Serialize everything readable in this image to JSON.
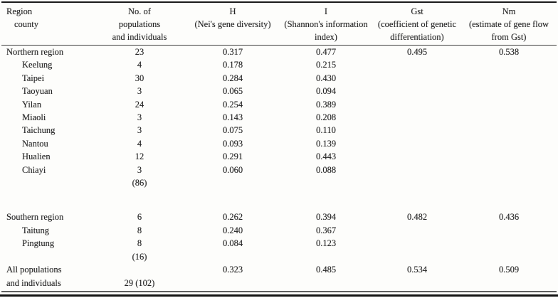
{
  "table": {
    "col_ids": [
      "region",
      "n",
      "h",
      "i",
      "gst",
      "nm"
    ],
    "header": [
      [
        "Region",
        "No. of",
        "H",
        "I",
        "Gst",
        "Nm"
      ],
      [
        "county",
        "populations",
        "(Nei's gene diversity)",
        "(Shannon's information",
        "(coefficient of genetic",
        "(estimate of gene flow"
      ],
      [
        "",
        "and individuals",
        "",
        "index)",
        "differentiation)",
        "from Gst)"
      ]
    ],
    "rows": [
      {
        "region": "Northern region",
        "indent": false,
        "n": "23",
        "h": "0.317",
        "i": "0.477",
        "gst": "0.495",
        "nm": "0.538"
      },
      {
        "region": "Keelung",
        "indent": true,
        "n": "4",
        "h": "0.178",
        "i": "0.215"
      },
      {
        "region": "Taipei",
        "indent": true,
        "n": "30",
        "h": "0.284",
        "i": "0.430"
      },
      {
        "region": "Taoyuan",
        "indent": true,
        "n": "3",
        "h": "0.065",
        "i": "0.094"
      },
      {
        "region": "Yilan",
        "indent": true,
        "n": "24",
        "h": "0.254",
        "i": "0.389"
      },
      {
        "region": "Miaoli",
        "indent": true,
        "n": "3",
        "h": "0.143",
        "i": "0.208"
      },
      {
        "region": "Taichung",
        "indent": true,
        "n": "3",
        "h": "0.075",
        "i": "0.110"
      },
      {
        "region": "Nantou",
        "indent": true,
        "n": "4",
        "h": "0.093",
        "i": "0.139"
      },
      {
        "region": "Hualien",
        "indent": true,
        "n": "12",
        "h": "0.291",
        "i": "0.443"
      },
      {
        "region": "Chiayi",
        "indent": true,
        "n": "3",
        "h": "0.060",
        "i": "0.088"
      },
      {
        "region": "",
        "n": "(86)"
      },
      {
        "spacer": true
      },
      {
        "region": "Southern region",
        "indent": false,
        "n": "6",
        "h": "0.262",
        "i": "0.394",
        "gst": "0.482",
        "nm": "0.436"
      },
      {
        "region": "Taitung",
        "indent": true,
        "n": "8",
        "h": "0.240",
        "i": "0.367"
      },
      {
        "region": "Pingtung",
        "indent": true,
        "n": "8",
        "h": "0.084",
        "i": "0.123"
      },
      {
        "region": "",
        "n": "(16)"
      },
      {
        "region": "All populations",
        "indent": false,
        "h": "0.323",
        "i": "0.485",
        "gst": "0.534",
        "nm": "0.509"
      },
      {
        "region": "and individuals",
        "indent": false,
        "n": "29 (102)"
      }
    ]
  }
}
